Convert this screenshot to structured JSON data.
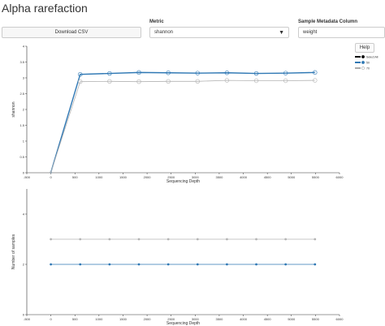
{
  "page": {
    "title": "Alpha rarefaction"
  },
  "controls": {
    "download_label": "Download CSV",
    "metric_label": "Metric",
    "metric_value": "shannon",
    "metadata_label": "Sample Metadata Column",
    "metadata_value": "weight"
  },
  "help_label": "Help",
  "legend": {
    "items": [
      {
        "label": "Select All",
        "color": "#000000"
      },
      {
        "label": "50",
        "color": "#2f78b4"
      },
      {
        "label": "70",
        "color": "#aaaaaa"
      }
    ]
  },
  "icons": {
    "metric_caret": "caret-down-icon"
  },
  "chart_data": [
    {
      "type": "line",
      "xlabel": "Sequencing Depth",
      "ylabel": "shannon",
      "xlim": [
        -500,
        6000
      ],
      "ylim": [
        0,
        4
      ],
      "xticks": [
        "-500",
        "0",
        "500",
        "1000",
        "1500",
        "2000",
        "2500",
        "3000",
        "3500",
        "4000",
        "4500",
        "5000",
        "5500",
        "6000"
      ],
      "yticks": [
        "0",
        "0.5",
        "1",
        "1.5",
        "2",
        "2.5",
        "3",
        "3.5",
        "4"
      ],
      "x": [
        0,
        610,
        1220,
        1830,
        2440,
        3050,
        3660,
        4270,
        4880,
        5490
      ],
      "series": [
        {
          "name": "50",
          "color": "#2f78b4",
          "values": [
            0.01,
            3.11,
            3.14,
            3.17,
            3.16,
            3.15,
            3.16,
            3.14,
            3.15,
            3.17
          ]
        },
        {
          "name": "70",
          "color": "#b4b4b4",
          "values": [
            0.01,
            2.88,
            2.89,
            2.88,
            2.89,
            2.89,
            2.92,
            2.91,
            2.91,
            2.92
          ]
        }
      ]
    },
    {
      "type": "line",
      "xlabel": "Sequencing Depth",
      "ylabel": "Number of samples",
      "xlim": [
        -500,
        6000
      ],
      "ylim": [
        0,
        5
      ],
      "xticks": [
        "-500",
        "0",
        "500",
        "1000",
        "1500",
        "2000",
        "2500",
        "3000",
        "3500",
        "4000",
        "4500",
        "5000",
        "5500",
        "6000"
      ],
      "yticks": [
        "0",
        "2",
        "4"
      ],
      "x": [
        0,
        610,
        1220,
        1830,
        2440,
        3050,
        3660,
        4270,
        4880,
        5490
      ],
      "series": [
        {
          "name": "50",
          "color": "#2f78b4",
          "values": [
            2,
            2,
            2,
            2,
            2,
            2,
            2,
            2,
            2,
            2
          ]
        },
        {
          "name": "70",
          "color": "#b4b4b4",
          "values": [
            3,
            3,
            3,
            3,
            3,
            3,
            3,
            3,
            3,
            3
          ]
        }
      ]
    }
  ]
}
